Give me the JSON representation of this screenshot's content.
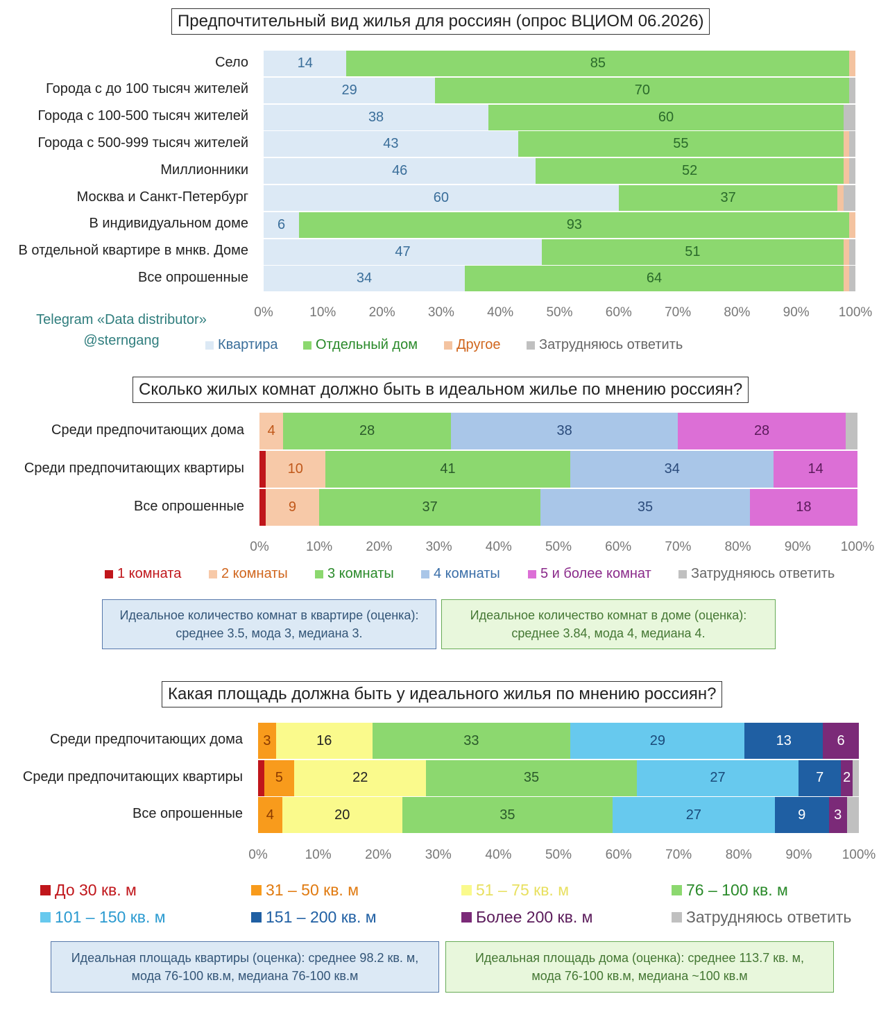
{
  "credit": {
    "line1": "Telegram «Data distributor»",
    "line2": "@sterngang"
  },
  "ticks": [
    "0%",
    "10%",
    "20%",
    "30%",
    "40%",
    "50%",
    "60%",
    "70%",
    "80%",
    "90%",
    "100%"
  ],
  "colors": {
    "kvartira": "#dce9f5",
    "dom": "#8cd86f",
    "drugoe": "#f4c3a0",
    "zatr": "#c0c0c0",
    "r1": "#c0161b",
    "r2": "#f7c9a8",
    "r3": "#8cd86f",
    "r4": "#a9c6e8",
    "r5": "#dc6fd6",
    "a1": "#c0161b",
    "a2": "#f89b1c",
    "a3": "#fafa8c",
    "a4": "#8cd86f",
    "a5": "#67c9ee",
    "a6": "#1f5fa3",
    "a7": "#7b2a78"
  },
  "chart1": {
    "title": "Предпочтительный вид жилья для россиян (опрос ВЦИОМ 06.2026)",
    "chart_data": {
      "type": "bar",
      "orientation": "horizontal-stacked-100",
      "categories": [
        "Село",
        "Города с до 100 тысяч жителей",
        "Города с 100-500 тысяч жителей",
        "Города с 500-999 тысяч жителей",
        "Миллионники",
        "Москва и Санкт-Петербург",
        "В индивидуальном доме",
        "В отдельной квартире в мнкв. Доме",
        "Все опрошенные"
      ],
      "series": [
        {
          "name": "Квартира",
          "color": "#dce9f5",
          "label_color": "#3a6e9a",
          "values": [
            14,
            29,
            38,
            43,
            46,
            60,
            6,
            47,
            34
          ]
        },
        {
          "name": "Отдельный дом",
          "color": "#8cd86f",
          "label_color": "#2a6a2a",
          "values": [
            85,
            70,
            60,
            55,
            52,
            37,
            93,
            51,
            64
          ]
        },
        {
          "name": "Другое",
          "color": "#f4c3a0",
          "label_color": "#c0581a",
          "values": [
            1,
            0,
            0,
            1,
            1,
            1,
            1,
            1,
            1
          ]
        },
        {
          "name": "Затрудняюсь ответить",
          "color": "#c0c0c0",
          "label_color": "#666666",
          "values": [
            0,
            1,
            2,
            1,
            1,
            2,
            0,
            1,
            1
          ]
        }
      ],
      "labels": [
        [
          "14",
          "85",
          "",
          ""
        ],
        [
          "29",
          "70",
          "",
          ""
        ],
        [
          "38",
          "60",
          "",
          ""
        ],
        [
          "43",
          "55",
          "",
          ""
        ],
        [
          "46",
          "52",
          "",
          ""
        ],
        [
          "60",
          "37",
          "",
          ""
        ],
        [
          "6",
          "93",
          "",
          ""
        ],
        [
          "47",
          "51",
          "",
          ""
        ],
        [
          "34",
          "64",
          "",
          ""
        ]
      ],
      "xlim": [
        0,
        100
      ]
    },
    "legend": [
      {
        "label": "Квартира",
        "color": "#dce9f5",
        "text_color": "#3a6e9a"
      },
      {
        "label": "Отдельный дом",
        "color": "#8cd86f",
        "text_color": "#2a8a2a"
      },
      {
        "label": "Другое",
        "color": "#f4c3a0",
        "text_color": "#d0661e"
      },
      {
        "label": "Затрудняюсь ответить",
        "color": "#c0c0c0",
        "text_color": "#666666"
      }
    ]
  },
  "chart2": {
    "title": "Сколько жилых комнат должно быть в идеальном жилье по мнению россиян?",
    "chart_data": {
      "type": "bar",
      "orientation": "horizontal-stacked-100",
      "categories": [
        "Среди предпочитающих дома",
        "Среди предпочитающих квартиры",
        "Все опрошенные"
      ],
      "series": [
        {
          "name": "1 комната",
          "color": "#c0161b",
          "label_color": "#ffffff",
          "values": [
            0,
            1,
            1
          ]
        },
        {
          "name": "2 комнаты",
          "color": "#f7c9a8",
          "label_color": "#c0581a",
          "values": [
            4,
            10,
            9
          ]
        },
        {
          "name": "3 комнаты",
          "color": "#8cd86f",
          "label_color": "#2a5a2a",
          "values": [
            28,
            41,
            37
          ]
        },
        {
          "name": "4 комнаты",
          "color": "#a9c6e8",
          "label_color": "#2a4a7a",
          "values": [
            38,
            34,
            35
          ]
        },
        {
          "name": "5 и более комнат",
          "color": "#dc6fd6",
          "label_color": "#5a1a5a",
          "values": [
            28,
            14,
            18
          ]
        },
        {
          "name": "Затрудняюсь ответить",
          "color": "#c0c0c0",
          "label_color": "#666666",
          "values": [
            2,
            0,
            0
          ]
        }
      ],
      "labels": [
        [
          "",
          "4",
          "28",
          "38",
          "28",
          ""
        ],
        [
          "",
          "10",
          "41",
          "34",
          "14",
          ""
        ],
        [
          "",
          "9",
          "37",
          "35",
          "18",
          ""
        ]
      ],
      "xlim": [
        0,
        100
      ]
    },
    "legend": [
      {
        "label": "1 комната",
        "color": "#c0161b",
        "text_color": "#c0161b"
      },
      {
        "label": "2 комнаты",
        "color": "#f7c9a8",
        "text_color": "#d0661e"
      },
      {
        "label": "3 комнаты",
        "color": "#8cd86f",
        "text_color": "#2a8a2a"
      },
      {
        "label": "4 комнаты",
        "color": "#a9c6e8",
        "text_color": "#3a6ea8"
      },
      {
        "label": "5 и более комнат",
        "color": "#dc6fd6",
        "text_color": "#8a2a8a"
      },
      {
        "label": "Затрудняюсь ответить",
        "color": "#c0c0c0",
        "text_color": "#666666"
      }
    ],
    "notes": [
      {
        "line1": "Идеальное количество комнат в квартире (оценка):",
        "line2": "среднее 3.5, мода 3, медиана 3.",
        "bg": "#dce9f5",
        "border": "#5577aa",
        "text_color": "#335577"
      },
      {
        "line1": "Идеальное количество комнат в доме (оценка):",
        "line2": "среднее 3.84, мода 4, медиана 4.",
        "bg": "#e8f7dc",
        "border": "#66aa55",
        "text_color": "#447733"
      }
    ]
  },
  "chart3": {
    "title": "Какая площадь должна быть у идеального жилья по мнению россиян?",
    "chart_data": {
      "type": "bar",
      "orientation": "horizontal-stacked-100",
      "categories": [
        "Среди предпочитающих дома",
        "Среди предпочитающих квартиры",
        "Все опрошенные"
      ],
      "series": [
        {
          "name": "До 30 кв. м",
          "color": "#c0161b",
          "label_color": "#ffffff",
          "values": [
            0,
            1,
            0
          ]
        },
        {
          "name": "31 – 50 кв. м",
          "color": "#f89b1c",
          "label_color": "#8a3a00",
          "values": [
            3,
            5,
            4
          ]
        },
        {
          "name": "51 – 75 кв. м",
          "color": "#fafa8c",
          "label_color": "#222222",
          "values": [
            16,
            22,
            20
          ]
        },
        {
          "name": "76 – 100 кв. м",
          "color": "#8cd86f",
          "label_color": "#2a5a2a",
          "values": [
            33,
            35,
            35
          ]
        },
        {
          "name": "101 – 150 кв. м",
          "color": "#67c9ee",
          "label_color": "#1a4a7a",
          "values": [
            29,
            27,
            27
          ]
        },
        {
          "name": "151 – 200 кв. м",
          "color": "#1f5fa3",
          "label_color": "#ffffff",
          "values": [
            13,
            7,
            9
          ]
        },
        {
          "name": "Более 200 кв. м",
          "color": "#7b2a78",
          "label_color": "#ffffff",
          "values": [
            6,
            2,
            3
          ]
        },
        {
          "name": "Затрудняюсь ответить",
          "color": "#c0c0c0",
          "label_color": "#666666",
          "values": [
            0,
            1,
            2
          ]
        }
      ],
      "labels": [
        [
          "",
          "3",
          "16",
          "33",
          "29",
          "13",
          "6",
          ""
        ],
        [
          "",
          "5",
          "22",
          "35",
          "27",
          "7",
          "2",
          ""
        ],
        [
          "",
          "4",
          "20",
          "35",
          "27",
          "9",
          "3",
          ""
        ]
      ],
      "xlim": [
        0,
        100
      ]
    },
    "legend": [
      {
        "label": "До 30 кв. м",
        "color": "#c0161b",
        "text_color": "#c0161b"
      },
      {
        "label": "31 – 50 кв. м",
        "color": "#f89b1c",
        "text_color": "#e07a10"
      },
      {
        "label": "51 – 75 кв. м",
        "color": "#fafa8c",
        "text_color": "#e8e060"
      },
      {
        "label": "76 – 100 кв. м",
        "color": "#8cd86f",
        "text_color": "#2a8a2a"
      },
      {
        "label": "101 – 150 кв. м",
        "color": "#67c9ee",
        "text_color": "#2a9ad0"
      },
      {
        "label": "151 – 200 кв. м",
        "color": "#1f5fa3",
        "text_color": "#1f5fa3"
      },
      {
        "label": "Более 200 кв. м",
        "color": "#7b2a78",
        "text_color": "#5a1a5a"
      },
      {
        "label": "Затрудняюсь ответить",
        "color": "#c0c0c0",
        "text_color": "#666666"
      }
    ],
    "notes": [
      {
        "line1": "Идеальная площадь квартиры (оценка): среднее 98.2 кв. м,",
        "line2": "мода 76-100 кв.м, медиана 76-100 кв.м",
        "bg": "#dce9f5",
        "border": "#5577aa",
        "text_color": "#335577"
      },
      {
        "line1": "Идеальная площадь дома (оценка): среднее 113.7 кв. м,",
        "line2": "мода 76-100 кв.м, медиана ~100 кв.м",
        "bg": "#e8f7dc",
        "border": "#66aa55",
        "text_color": "#447733"
      }
    ]
  }
}
